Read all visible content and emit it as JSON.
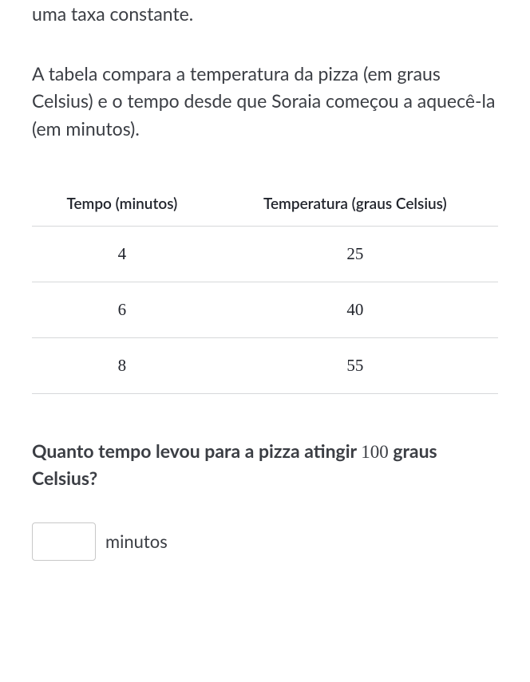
{
  "intro": "uma taxa constante.",
  "description": "A tabela compara a temperatura da pizza (em graus Celsius) e o tempo desde que Soraia começou a aquecê-la (em minutos).",
  "table": {
    "columns": [
      "Tempo (minutos)",
      "Temperatura (graus Celsius)"
    ],
    "rows": [
      [
        "4",
        "25"
      ],
      [
        "6",
        "40"
      ],
      [
        "8",
        "55"
      ]
    ],
    "header_fontsize": 19,
    "cell_fontsize": 21,
    "border_color": "#d6d8da",
    "header_color": "#21242c",
    "cell_color": "#21242c"
  },
  "question": {
    "prefix": "Quanto tempo levou para a pizza atingir ",
    "number": "100",
    "suffix": " graus Celsius?"
  },
  "answer": {
    "value": "",
    "unit": "minutos"
  },
  "colors": {
    "text_primary": "#3b3e44",
    "text_strong": "#21242c",
    "background": "#ffffff",
    "input_border": "#c8c8c8"
  }
}
